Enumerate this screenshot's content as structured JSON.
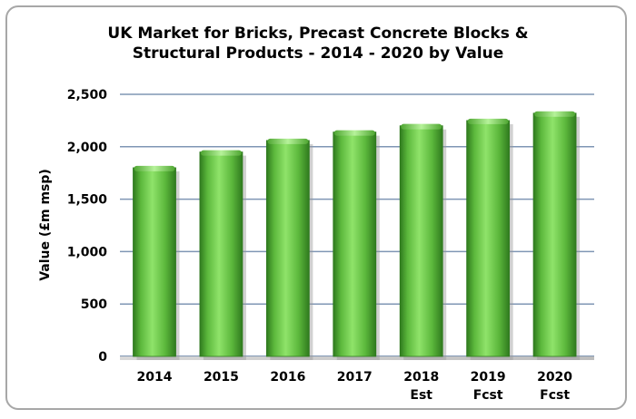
{
  "chart_data": {
    "type": "bar",
    "title_line1": "UK Market for Bricks, Precast Concrete Blocks &",
    "title_line2": "Structural Products - 2014 - 2020 by Value",
    "xlabel": "",
    "ylabel": "Value (£m msp)",
    "ylim": [
      0,
      2500
    ],
    "yticks": [
      "0",
      "500",
      "1,000",
      "1,500",
      "2,000",
      "2,500"
    ],
    "ytick_values": [
      0,
      500,
      1000,
      1500,
      2000,
      2500
    ],
    "categories": [
      "2014",
      "2015",
      "2016",
      "2017",
      "2018",
      "2019",
      "2020"
    ],
    "category_sublabels": [
      "",
      "",
      "",
      "",
      "Est",
      "Fcst",
      "Fcst"
    ],
    "values": [
      1800,
      1950,
      2060,
      2140,
      2200,
      2250,
      2320
    ],
    "grid": true,
    "legend": "none",
    "bar_color": "#5cb83c",
    "bar_highlight": "#8fe36a",
    "bar_shadow": "#2f7a1e",
    "gridline_color": "#7f96b4"
  }
}
